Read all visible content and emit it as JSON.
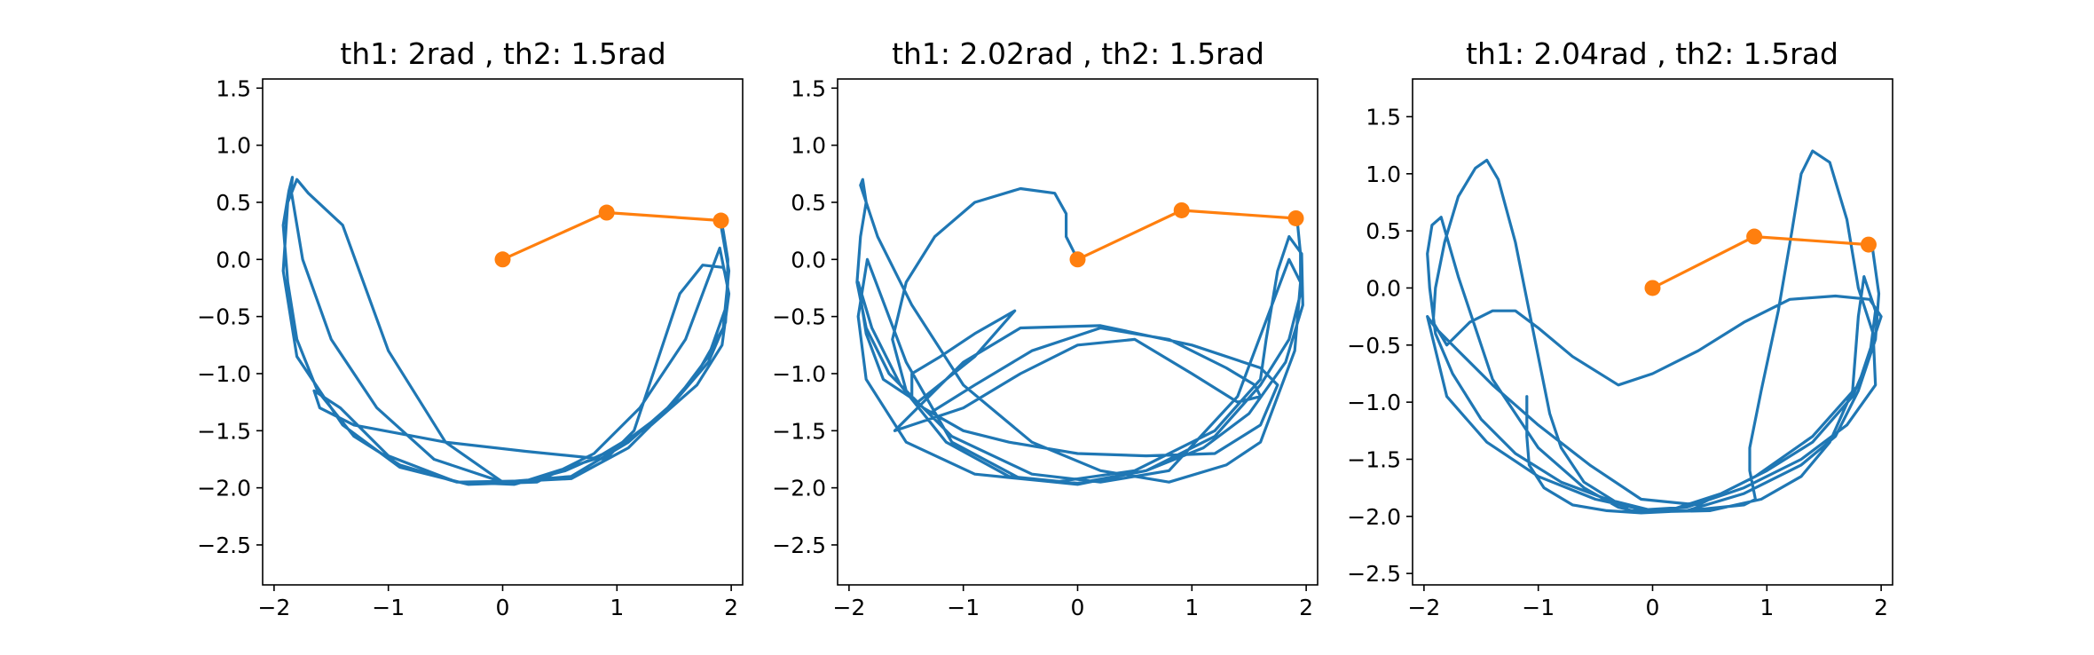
{
  "chart_data": [
    {
      "type": "line",
      "title": "th1: 2rad , th2: 1.5rad",
      "xlim": [
        -2.1,
        2.1
      ],
      "ylim": [
        -2.85,
        1.58
      ],
      "xticks": [
        -2,
        -1,
        0,
        1,
        2
      ],
      "xtick_labels": [
        "−2",
        "−1",
        "0",
        "1",
        "2"
      ],
      "yticks": [
        -2.5,
        -2.0,
        -1.5,
        -1.0,
        -0.5,
        0.0,
        0.5,
        1.0,
        1.5
      ],
      "ytick_labels": [
        "−2.5",
        "−2.0",
        "−1.5",
        "−1.0",
        "−0.5",
        "0.0",
        "0.5",
        "1.0",
        "1.5"
      ],
      "colors": {
        "trace": "#1f77b4",
        "pendulum": "#ff7f0e"
      },
      "pendulum": {
        "x": [
          0,
          0.91,
          1.91
        ],
        "y": [
          0,
          0.41,
          0.34
        ]
      },
      "trace": {
        "x": [
          1.91,
          1.98,
          1.93,
          1.7,
          1.4,
          1.0,
          0.55,
          0.1,
          -0.4,
          -0.9,
          -1.3,
          -1.62,
          -1.8,
          -1.88,
          -1.92,
          -1.87,
          -1.84,
          -1.85,
          -1.75,
          -1.5,
          -1.1,
          -0.6,
          0.0,
          0.6,
          1.1,
          1.5,
          1.8,
          1.95,
          1.97,
          1.93,
          1.75,
          1.55,
          1.35,
          1.15,
          0.9,
          0.2,
          -0.5,
          -1.3,
          -1.6,
          -1.65,
          -1.42,
          -1.0,
          -0.4,
          0.2,
          0.8,
          1.3,
          1.7,
          1.92,
          1.98,
          1.9,
          1.6,
          1.2,
          0.8,
          0.3,
          -0.3,
          -0.9,
          -1.4,
          -1.8,
          -1.92,
          -1.88,
          -1.8,
          -1.7,
          -1.4,
          -1.0,
          -0.5,
          0.0,
          0.6,
          1.1,
          1.5,
          1.8,
          1.96,
          1.97,
          1.93,
          1.9
        ],
        "y": [
          0.3,
          -0.1,
          -0.6,
          -1.0,
          -1.35,
          -1.65,
          -1.85,
          -1.97,
          -1.95,
          -1.8,
          -1.55,
          -1.15,
          -0.7,
          -0.2,
          0.3,
          0.6,
          0.72,
          0.6,
          0.0,
          -0.7,
          -1.3,
          -1.75,
          -1.95,
          -1.9,
          -1.6,
          -1.25,
          -0.9,
          -0.55,
          -0.2,
          -0.07,
          -0.05,
          -0.3,
          -0.9,
          -1.5,
          -1.75,
          -1.68,
          -1.6,
          -1.45,
          -1.3,
          -1.15,
          -1.3,
          -1.72,
          -1.95,
          -1.94,
          -1.75,
          -1.45,
          -1.1,
          -0.75,
          -0.3,
          0.1,
          -0.7,
          -1.3,
          -1.7,
          -1.95,
          -1.97,
          -1.82,
          -1.45,
          -0.85,
          -0.1,
          0.5,
          0.7,
          0.58,
          0.3,
          -0.8,
          -1.6,
          -1.95,
          -1.92,
          -1.65,
          -1.25,
          -0.85,
          -0.4,
          0.0,
          0.25,
          0.38
        ]
      }
    },
    {
      "type": "line",
      "title": "th1: 2.02rad , th2: 1.5rad",
      "xlim": [
        -2.1,
        2.1
      ],
      "ylim": [
        -2.85,
        1.58
      ],
      "xticks": [
        -2,
        -1,
        0,
        1,
        2
      ],
      "xtick_labels": [
        "−2",
        "−1",
        "0",
        "1",
        "2"
      ],
      "yticks": [
        -2.5,
        -2.0,
        -1.5,
        -1.0,
        -0.5,
        0.0,
        0.5,
        1.0,
        1.5
      ],
      "ytick_labels": [
        "−2.5",
        "−2.0",
        "−1.5",
        "−1.0",
        "−0.5",
        "0.0",
        "0.5",
        "1.0",
        "1.5"
      ],
      "colors": {
        "trace": "#1f77b4",
        "pendulum": "#ff7f0e"
      },
      "pendulum": {
        "x": [
          0,
          0.91,
          1.91
        ],
        "y": [
          0,
          0.43,
          0.36
        ]
      },
      "trace": {
        "x": [
          0.0,
          -0.1,
          -0.1,
          -0.2,
          -0.5,
          -0.9,
          -1.25,
          -1.5,
          -1.62,
          -1.5,
          -1.3,
          -0.9,
          -0.4,
          0.2,
          0.8,
          1.3,
          1.55,
          1.6,
          1.4,
          1.0,
          0.5,
          0.0,
          -0.5,
          -1.0,
          -1.45,
          -1.6,
          -1.45,
          -1.0,
          -0.5,
          0.2,
          1.0,
          1.6,
          1.75,
          1.6,
          1.2,
          0.6,
          0.0,
          -0.6,
          -1.0,
          -1.35,
          -1.65,
          -1.85,
          -1.93,
          -1.9,
          -1.85,
          -1.88,
          -1.9,
          -1.75,
          -1.45,
          -1.0,
          -0.4,
          0.2,
          0.8,
          1.3,
          1.6,
          1.9,
          1.95,
          1.85,
          1.7,
          1.4,
          0.8,
          0.2,
          -0.4,
          -1.1,
          -1.45,
          -1.45,
          -1.2,
          -0.9,
          -0.55,
          -0.9,
          -1.4,
          -1.7,
          -1.85,
          -1.92,
          -1.8,
          -1.55,
          -1.15,
          -0.6,
          0.0,
          0.6,
          1.1,
          1.5,
          1.82,
          1.97,
          1.96,
          1.85,
          1.75,
          1.65,
          1.6,
          1.2,
          0.5,
          -0.2,
          -0.9,
          -1.5,
          -1.85,
          -1.92,
          -1.84,
          -1.5,
          -1.1,
          -0.5,
          0.0,
          0.6,
          1.2,
          1.6,
          1.85,
          1.95,
          1.95,
          1.92
        ],
        "y": [
          0.0,
          0.2,
          0.4,
          0.58,
          0.62,
          0.5,
          0.2,
          -0.2,
          -0.7,
          -1.15,
          -1.35,
          -1.1,
          -0.8,
          -0.6,
          -0.7,
          -0.95,
          -1.1,
          -1.2,
          -1.25,
          -1.0,
          -0.7,
          -0.75,
          -1.0,
          -1.3,
          -1.45,
          -1.5,
          -1.35,
          -0.9,
          -0.6,
          -0.58,
          -0.75,
          -0.95,
          -1.1,
          -1.45,
          -1.7,
          -1.72,
          -1.7,
          -1.6,
          -1.5,
          -1.3,
          -1.0,
          -0.6,
          -0.2,
          0.2,
          0.5,
          0.7,
          0.65,
          0.2,
          -0.4,
          -1.1,
          -1.6,
          -1.85,
          -1.95,
          -1.8,
          -1.6,
          -0.8,
          -0.2,
          0.0,
          -0.4,
          -1.2,
          -1.85,
          -1.95,
          -1.88,
          -1.55,
          -1.2,
          -1.0,
          -0.85,
          -0.65,
          -0.45,
          -0.85,
          -1.25,
          -1.05,
          -0.65,
          -0.2,
          -0.6,
          -1.1,
          -1.6,
          -1.9,
          -1.96,
          -1.85,
          -1.65,
          -1.35,
          -0.9,
          -0.4,
          0.05,
          0.2,
          -0.1,
          -0.7,
          -1.05,
          -1.5,
          -1.85,
          -1.95,
          -1.88,
          -1.6,
          -1.05,
          -0.5,
          0.0,
          -0.9,
          -1.6,
          -1.92,
          -1.97,
          -1.85,
          -1.55,
          -1.1,
          -0.7,
          -0.3,
          0.05,
          0.36
        ]
      }
    },
    {
      "type": "line",
      "title": "th1: 2.04rad , th2: 1.5rad",
      "xlim": [
        -2.1,
        2.1
      ],
      "ylim": [
        -2.6,
        1.83
      ],
      "xticks": [
        -2,
        -1,
        0,
        1,
        2
      ],
      "xtick_labels": [
        "−2",
        "−1",
        "0",
        "1",
        "2"
      ],
      "yticks": [
        -2.5,
        -2.0,
        -1.5,
        -1.0,
        -0.5,
        0.0,
        0.5,
        1.0,
        1.5
      ],
      "ytick_labels": [
        "−2.5",
        "−2.0",
        "−1.5",
        "−1.0",
        "−0.5",
        "0.0",
        "0.5",
        "1.0",
        "1.5"
      ],
      "colors": {
        "trace": "#1f77b4",
        "pendulum": "#ff7f0e"
      },
      "pendulum": {
        "x": [
          0,
          0.89,
          1.89
        ],
        "y": [
          0,
          0.45,
          0.38
        ]
      },
      "trace": {
        "x": [
          -1.1,
          -1.1,
          -1.08,
          -0.95,
          -0.7,
          -0.4,
          -0.1,
          0.2,
          0.6,
          1.0,
          1.4,
          1.75,
          1.9,
          1.95,
          1.85,
          1.8,
          1.75,
          1.55,
          1.3,
          0.95,
          0.5,
          0.0,
          -0.5,
          -1.0,
          -1.45,
          -1.8,
          -1.97,
          -1.9,
          -1.7,
          -1.4,
          -1.0,
          -0.55,
          -0.1,
          0.4,
          0.9,
          1.4,
          1.8,
          2.0,
          1.9,
          1.6,
          1.2,
          0.8,
          0.4,
          0.0,
          -0.3,
          -0.7,
          -1.0,
          -1.2,
          -1.4,
          -1.6,
          -1.8,
          -1.92,
          -1.9,
          -1.82,
          -1.7,
          -1.55,
          -1.45,
          -1.35,
          -1.2,
          -1.0,
          -0.9,
          -0.8,
          -0.6,
          -0.2,
          0.3,
          0.8,
          1.3,
          1.7,
          1.95,
          1.93,
          1.8,
          1.7,
          1.55,
          1.4,
          1.3,
          1.22,
          1.1,
          0.95,
          0.85,
          0.85,
          0.9,
          0.8,
          0.6,
          0.3,
          0.0,
          -0.4,
          -0.8,
          -1.2,
          -1.5,
          -1.75,
          -1.9,
          -1.95,
          -1.97,
          -1.93,
          -1.85,
          -1.7,
          -1.4,
          -1.0,
          -0.6,
          -0.3,
          -0.1,
          0.3,
          0.8,
          1.3,
          1.6,
          1.8,
          1.95,
          1.98,
          1.92
        ],
        "y": [
          -0.95,
          -1.3,
          -1.55,
          -1.75,
          -1.9,
          -1.95,
          -1.97,
          -1.93,
          -1.8,
          -1.6,
          -1.35,
          -0.95,
          -0.6,
          -0.2,
          0.1,
          -0.25,
          -0.9,
          -1.35,
          -1.65,
          -1.85,
          -1.95,
          -1.96,
          -1.85,
          -1.65,
          -1.35,
          -0.95,
          -0.25,
          -0.35,
          -0.55,
          -0.85,
          -1.2,
          -1.55,
          -1.85,
          -1.9,
          -1.65,
          -1.3,
          -0.85,
          -0.25,
          -0.1,
          -0.07,
          -0.1,
          -0.3,
          -0.55,
          -0.75,
          -0.85,
          -0.6,
          -0.35,
          -0.2,
          -0.2,
          -0.3,
          -0.5,
          -0.3,
          0.0,
          0.4,
          0.8,
          1.05,
          1.12,
          0.95,
          0.4,
          -0.6,
          -1.1,
          -1.4,
          -1.7,
          -1.95,
          -1.92,
          -1.75,
          -1.5,
          -1.2,
          -0.85,
          -0.4,
          0.0,
          0.6,
          1.1,
          1.2,
          1.0,
          0.5,
          -0.2,
          -0.9,
          -1.4,
          -1.6,
          -1.85,
          -1.9,
          -1.92,
          -1.95,
          -1.95,
          -1.85,
          -1.7,
          -1.45,
          -1.15,
          -0.75,
          -0.4,
          0.0,
          0.3,
          0.55,
          0.62,
          0.1,
          -0.8,
          -1.4,
          -1.75,
          -1.92,
          -1.97,
          -1.95,
          -1.8,
          -1.55,
          -1.3,
          -0.9,
          -0.45,
          -0.05,
          0.38
        ]
      }
    }
  ]
}
